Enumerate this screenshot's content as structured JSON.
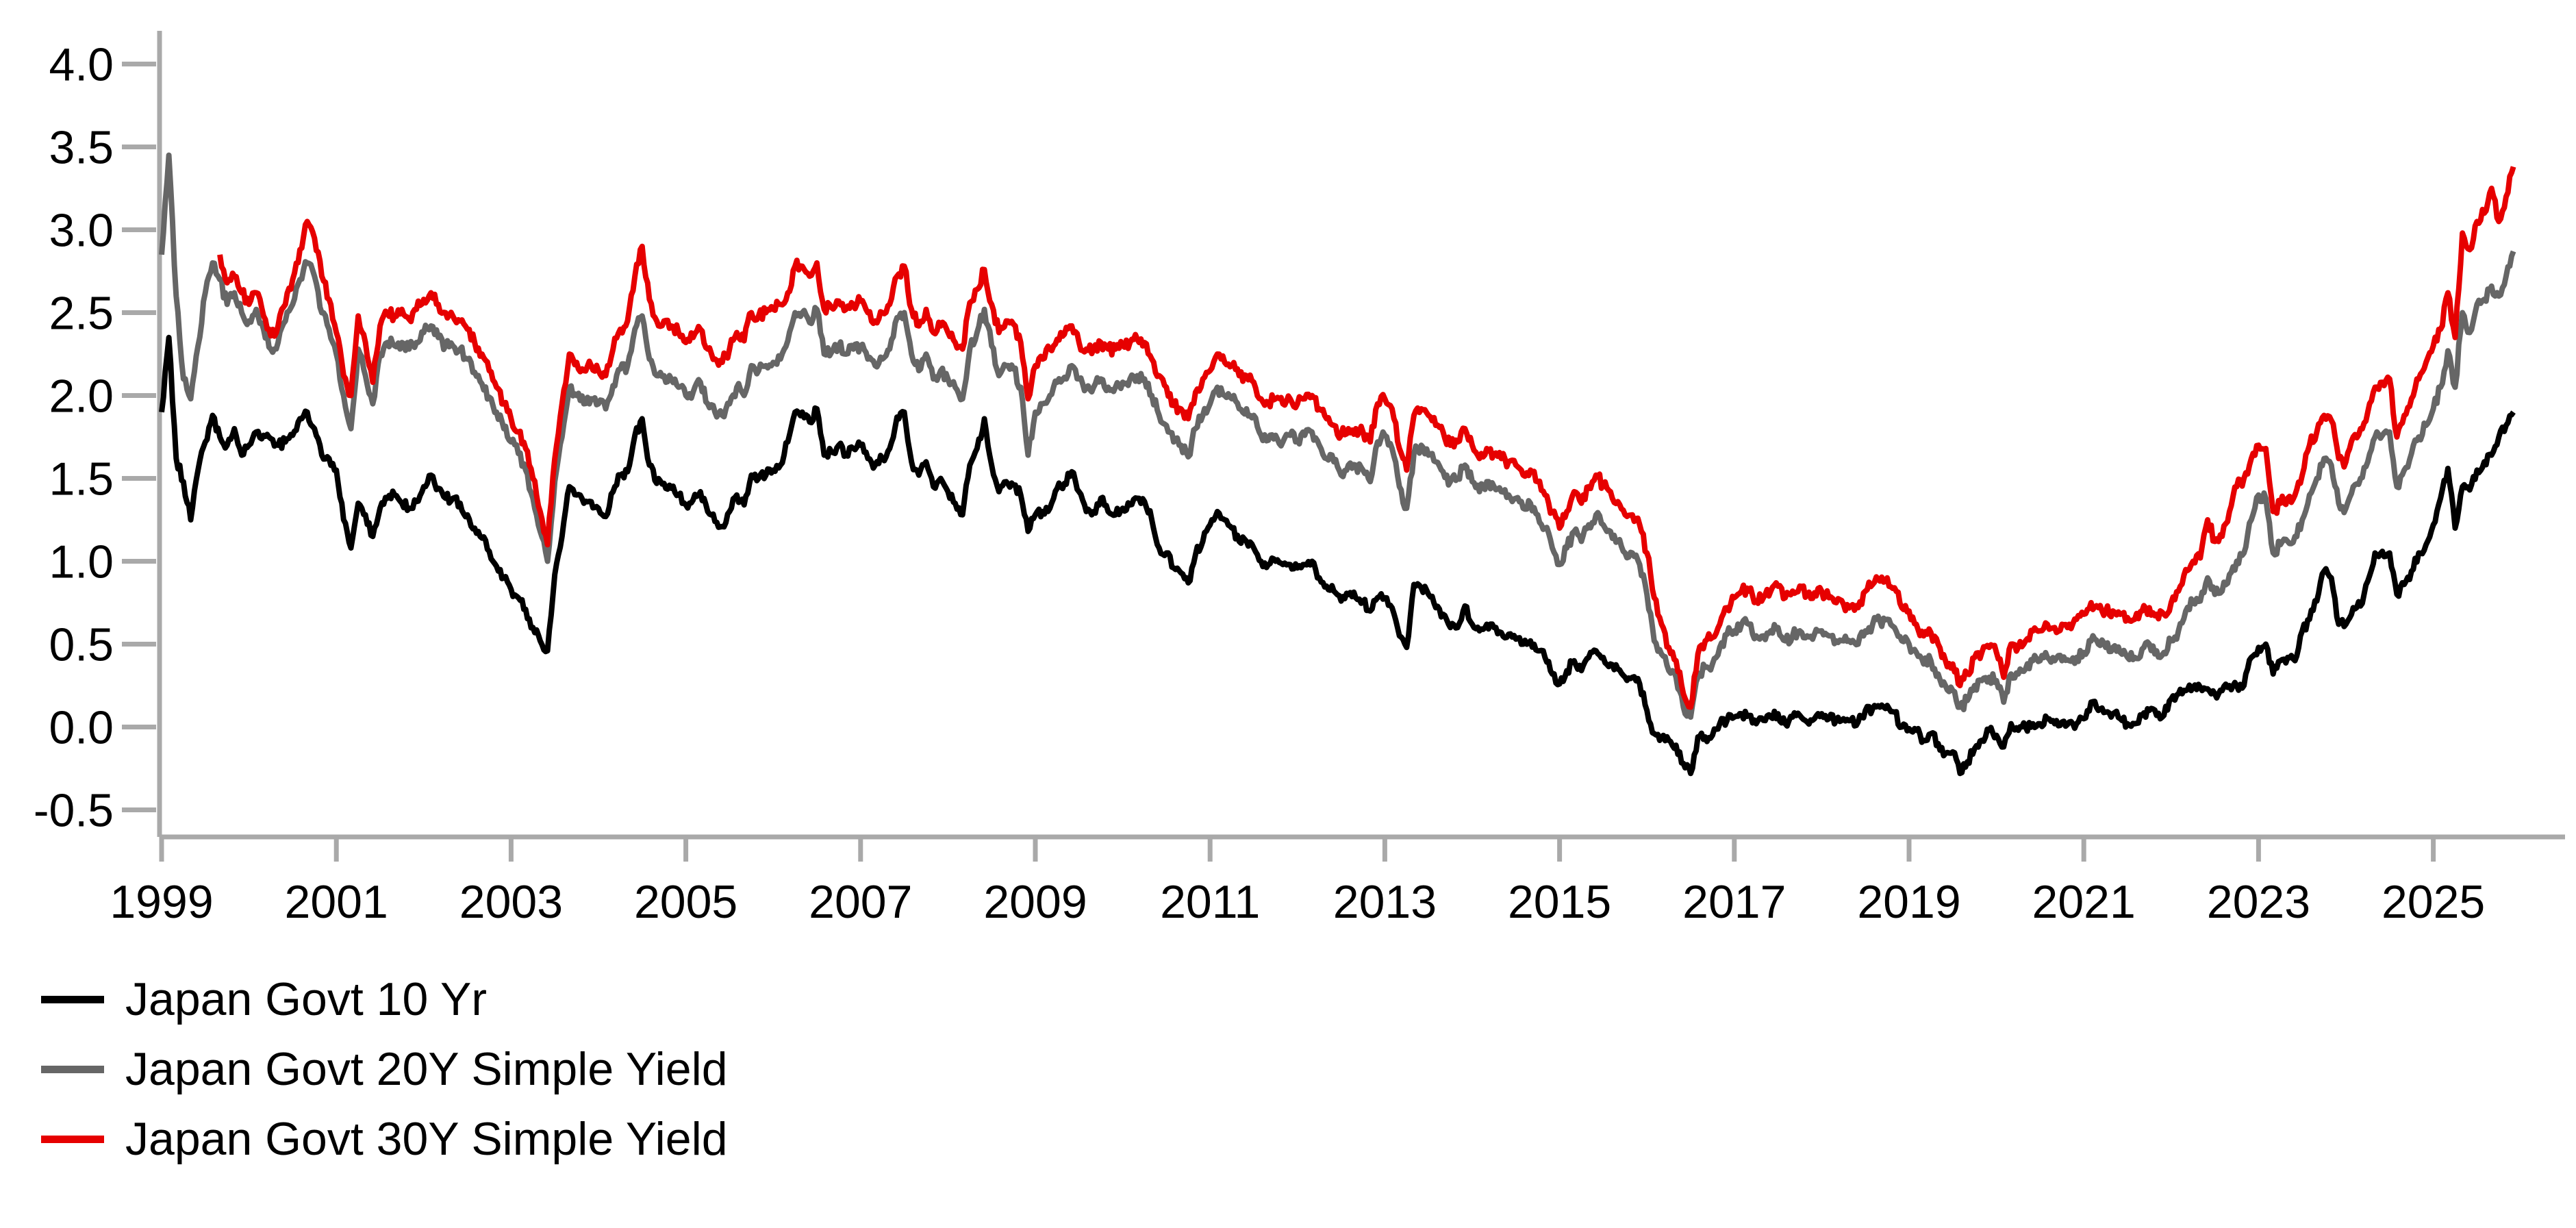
{
  "chart_data": {
    "type": "line",
    "title": "",
    "xlabel": "",
    "ylabel": "",
    "grid": false,
    "legend_position": "bottom-left",
    "axis_color": "#a9a9a9",
    "text_color": "#000000",
    "x_unit": "year",
    "frequency": "monthly",
    "x_ticks": [
      1999,
      2001,
      2003,
      2005,
      2007,
      2009,
      2011,
      2013,
      2015,
      2017,
      2019,
      2021,
      2023,
      2025
    ],
    "x_tick_labels": [
      "1999",
      "2001",
      "2003",
      "2005",
      "2007",
      "2009",
      "2011",
      "2013",
      "2015",
      "2017",
      "2019",
      "2021",
      "2023",
      "2025"
    ],
    "ylim": [
      -0.67,
      4.18
    ],
    "y_ticks": [
      4.0,
      3.5,
      3.0,
      2.5,
      2.0,
      1.5,
      1.0,
      0.5,
      0.0,
      -0.5
    ],
    "y_tick_labels": [
      "4.0",
      "3.5",
      "3.0",
      "2.5",
      "2.0",
      "1.5",
      "1.0",
      "0.5",
      "0.0",
      "-0.5"
    ],
    "x_range": [
      1999.0,
      2026.0
    ],
    "series": [
      {
        "name": "Japan Govt 10 Yr",
        "color": "#000000",
        "start_year": 1999.0,
        "values": [
          1.9,
          2.35,
          1.62,
          1.48,
          1.25,
          1.55,
          1.72,
          1.88,
          1.75,
          1.7,
          1.8,
          1.64,
          1.7,
          1.78,
          1.76,
          1.74,
          1.7,
          1.72,
          1.76,
          1.86,
          1.9,
          1.8,
          1.64,
          1.62,
          1.55,
          1.25,
          1.08,
          1.35,
          1.28,
          1.15,
          1.32,
          1.38,
          1.4,
          1.35,
          1.32,
          1.36,
          1.45,
          1.52,
          1.44,
          1.38,
          1.38,
          1.35,
          1.28,
          1.2,
          1.14,
          1.06,
          0.97,
          0.9,
          0.83,
          0.78,
          0.71,
          0.6,
          0.52,
          0.46,
          0.92,
          1.15,
          1.45,
          1.4,
          1.35,
          1.36,
          1.32,
          1.27,
          1.42,
          1.52,
          1.54,
          1.76,
          1.86,
          1.58,
          1.47,
          1.47,
          1.44,
          1.4,
          1.34,
          1.37,
          1.42,
          1.3,
          1.24,
          1.21,
          1.3,
          1.4,
          1.34,
          1.52,
          1.5,
          1.52,
          1.55,
          1.58,
          1.72,
          1.9,
          1.9,
          1.84,
          1.92,
          1.64,
          1.66,
          1.7,
          1.64,
          1.68,
          1.7,
          1.62,
          1.58,
          1.62,
          1.68,
          1.87,
          1.9,
          1.6,
          1.52,
          1.6,
          1.45,
          1.5,
          1.42,
          1.35,
          1.28,
          1.58,
          1.68,
          1.86,
          1.58,
          1.42,
          1.48,
          1.46,
          1.4,
          1.18,
          1.28,
          1.3,
          1.32,
          1.44,
          1.47,
          1.54,
          1.42,
          1.3,
          1.3,
          1.38,
          1.3,
          1.28,
          1.32,
          1.34,
          1.38,
          1.36,
          1.25,
          1.08,
          1.05,
          0.96,
          0.93,
          0.87,
          1.04,
          1.12,
          1.22,
          1.3,
          1.25,
          1.2,
          1.12,
          1.12,
          1.08,
          1.0,
          0.98,
          1.0,
          0.98,
          0.98,
          0.96,
          0.98,
          1.0,
          0.9,
          0.85,
          0.82,
          0.76,
          0.8,
          0.78,
          0.76,
          0.7,
          0.78,
          0.78,
          0.72,
          0.55,
          0.48,
          0.86,
          0.84,
          0.8,
          0.72,
          0.68,
          0.6,
          0.6,
          0.73,
          0.62,
          0.58,
          0.62,
          0.6,
          0.57,
          0.56,
          0.53,
          0.5,
          0.52,
          0.46,
          0.42,
          0.32,
          0.26,
          0.34,
          0.4,
          0.34,
          0.42,
          0.46,
          0.42,
          0.38,
          0.35,
          0.3,
          0.3,
          0.26,
          0.1,
          -0.04,
          -0.06,
          -0.08,
          -0.11,
          -0.22,
          -0.28,
          -0.06,
          -0.06,
          -0.05,
          0.02,
          0.04,
          0.06,
          0.08,
          0.07,
          0.02,
          0.04,
          0.06,
          0.08,
          0.02,
          0.06,
          0.07,
          0.03,
          0.05,
          0.08,
          0.05,
          0.04,
          0.05,
          0.04,
          0.03,
          0.1,
          0.11,
          0.12,
          0.13,
          0.09,
          0.0,
          -0.01,
          -0.02,
          -0.08,
          -0.04,
          -0.1,
          -0.16,
          -0.15,
          -0.28,
          -0.21,
          -0.13,
          -0.08,
          -0.02,
          -0.05,
          -0.12,
          0.02,
          -0.02,
          0.0,
          0.02,
          0.02,
          0.05,
          0.02,
          0.03,
          0.03,
          0.02,
          0.05,
          0.15,
          0.1,
          0.09,
          0.08,
          0.05,
          0.02,
          0.02,
          0.07,
          0.1,
          0.07,
          0.07,
          0.17,
          0.2,
          0.22,
          0.24,
          0.24,
          0.23,
          0.2,
          0.22,
          0.25,
          0.25,
          0.25,
          0.42,
          0.48,
          0.5,
          0.32,
          0.4,
          0.42,
          0.4,
          0.58,
          0.65,
          0.76,
          0.94,
          0.9,
          0.62,
          0.62,
          0.72,
          0.73,
          0.88,
          1.05,
          1.06,
          1.05,
          0.8,
          0.86,
          0.94,
          1.05,
          1.1,
          1.22,
          1.38,
          1.56,
          1.2,
          1.45,
          1.43,
          1.55,
          1.6,
          1.64,
          1.75,
          1.82,
          1.9
        ]
      },
      {
        "name": "Japan Govt 20Y Simple Yield",
        "color": "#666666",
        "start_year": 1999.0,
        "values": [
          2.85,
          3.45,
          2.6,
          2.1,
          1.98,
          2.3,
          2.62,
          2.8,
          2.7,
          2.55,
          2.62,
          2.5,
          2.45,
          2.52,
          2.4,
          2.28,
          2.32,
          2.45,
          2.55,
          2.7,
          2.8,
          2.72,
          2.5,
          2.4,
          2.25,
          2.0,
          1.8,
          2.28,
          2.12,
          1.95,
          2.25,
          2.32,
          2.3,
          2.32,
          2.28,
          2.32,
          2.38,
          2.42,
          2.35,
          2.3,
          2.3,
          2.28,
          2.22,
          2.14,
          2.07,
          1.99,
          1.9,
          1.8,
          1.72,
          1.65,
          1.55,
          1.38,
          1.18,
          1.0,
          1.48,
          1.75,
          2.05,
          2.0,
          1.95,
          1.98,
          1.95,
          1.92,
          2.06,
          2.16,
          2.18,
          2.4,
          2.48,
          2.22,
          2.12,
          2.12,
          2.1,
          2.05,
          2.0,
          2.02,
          2.08,
          1.95,
          1.9,
          1.88,
          1.95,
          2.05,
          2.0,
          2.18,
          2.15,
          2.18,
          2.2,
          2.22,
          2.33,
          2.5,
          2.5,
          2.44,
          2.52,
          2.25,
          2.26,
          2.3,
          2.25,
          2.28,
          2.3,
          2.22,
          2.18,
          2.22,
          2.28,
          2.47,
          2.5,
          2.25,
          2.15,
          2.25,
          2.1,
          2.15,
          2.1,
          2.05,
          1.98,
          2.28,
          2.38,
          2.52,
          2.3,
          2.12,
          2.18,
          2.16,
          2.05,
          1.64,
          1.9,
          1.95,
          2.0,
          2.08,
          2.11,
          2.18,
          2.1,
          2.05,
          2.05,
          2.1,
          2.05,
          2.05,
          2.08,
          2.1,
          2.12,
          2.1,
          2.0,
          1.88,
          1.82,
          1.72,
          1.7,
          1.63,
          1.8,
          1.88,
          1.95,
          2.05,
          2.0,
          1.98,
          1.92,
          1.92,
          1.88,
          1.76,
          1.73,
          1.76,
          1.72,
          1.76,
          1.73,
          1.76,
          1.78,
          1.7,
          1.62,
          1.6,
          1.52,
          1.58,
          1.58,
          1.55,
          1.48,
          1.72,
          1.76,
          1.68,
          1.45,
          1.32,
          1.65,
          1.7,
          1.64,
          1.6,
          1.54,
          1.48,
          1.5,
          1.58,
          1.48,
          1.42,
          1.48,
          1.45,
          1.42,
          1.4,
          1.38,
          1.32,
          1.35,
          1.28,
          1.2,
          1.08,
          0.98,
          1.08,
          1.18,
          1.12,
          1.22,
          1.28,
          1.22,
          1.18,
          1.12,
          1.05,
          1.05,
          0.98,
          0.8,
          0.52,
          0.44,
          0.34,
          0.3,
          0.12,
          0.06,
          0.3,
          0.36,
          0.38,
          0.48,
          0.56,
          0.58,
          0.62,
          0.62,
          0.55,
          0.55,
          0.58,
          0.6,
          0.52,
          0.55,
          0.58,
          0.55,
          0.56,
          0.58,
          0.55,
          0.52,
          0.52,
          0.51,
          0.5,
          0.58,
          0.62,
          0.64,
          0.65,
          0.6,
          0.52,
          0.5,
          0.45,
          0.38,
          0.4,
          0.32,
          0.25,
          0.22,
          0.12,
          0.16,
          0.25,
          0.28,
          0.3,
          0.28,
          0.15,
          0.32,
          0.32,
          0.35,
          0.4,
          0.4,
          0.42,
          0.4,
          0.4,
          0.4,
          0.42,
          0.45,
          0.52,
          0.5,
          0.48,
          0.48,
          0.45,
          0.42,
          0.42,
          0.47,
          0.5,
          0.46,
          0.45,
          0.52,
          0.58,
          0.7,
          0.75,
          0.76,
          0.9,
          0.8,
          0.82,
          0.92,
          1.0,
          1.05,
          1.25,
          1.4,
          1.38,
          1.05,
          1.1,
          1.12,
          1.15,
          1.25,
          1.4,
          1.5,
          1.62,
          1.58,
          1.35,
          1.32,
          1.45,
          1.5,
          1.6,
          1.75,
          1.76,
          1.78,
          1.45,
          1.55,
          1.65,
          1.75,
          1.82,
          1.92,
          2.05,
          2.27,
          2.05,
          2.5,
          2.38,
          2.55,
          2.58,
          2.66,
          2.6,
          2.72,
          2.87
        ]
      },
      {
        "name": "Japan Govt 30Y Simple Yield",
        "color": "#e60000",
        "start_year": 1999.6667,
        "values": [
          2.85,
          2.68,
          2.72,
          2.62,
          2.55,
          2.62,
          2.48,
          2.36,
          2.42,
          2.55,
          2.7,
          2.88,
          3.05,
          2.95,
          2.72,
          2.58,
          2.38,
          2.12,
          2.0,
          2.48,
          2.32,
          2.08,
          2.42,
          2.5,
          2.48,
          2.52,
          2.46,
          2.52,
          2.58,
          2.62,
          2.55,
          2.5,
          2.48,
          2.45,
          2.4,
          2.32,
          2.25,
          2.15,
          2.05,
          1.95,
          1.86,
          1.78,
          1.68,
          1.5,
          1.3,
          1.1,
          1.62,
          1.95,
          2.25,
          2.2,
          2.15,
          2.18,
          2.15,
          2.12,
          2.28,
          2.4,
          2.45,
          2.72,
          2.9,
          2.58,
          2.45,
          2.45,
          2.42,
          2.38,
          2.32,
          2.35,
          2.4,
          2.28,
          2.22,
          2.2,
          2.28,
          2.38,
          2.33,
          2.5,
          2.48,
          2.5,
          2.52,
          2.55,
          2.62,
          2.78,
          2.78,
          2.72,
          2.8,
          2.52,
          2.53,
          2.57,
          2.52,
          2.55,
          2.57,
          2.5,
          2.45,
          2.5,
          2.55,
          2.72,
          2.78,
          2.52,
          2.42,
          2.52,
          2.38,
          2.42,
          2.38,
          2.32,
          2.28,
          2.56,
          2.64,
          2.76,
          2.55,
          2.38,
          2.45,
          2.43,
          2.32,
          1.98,
          2.18,
          2.22,
          2.28,
          2.34,
          2.37,
          2.42,
          2.32,
          2.28,
          2.28,
          2.32,
          2.28,
          2.28,
          2.3,
          2.32,
          2.34,
          2.32,
          2.22,
          2.12,
          2.05,
          1.94,
          1.92,
          1.86,
          2.02,
          2.1,
          2.15,
          2.25,
          2.2,
          2.18,
          2.12,
          2.12,
          2.08,
          1.98,
          1.96,
          1.98,
          1.95,
          1.98,
          1.95,
          1.98,
          2.0,
          1.92,
          1.86,
          1.82,
          1.76,
          1.8,
          1.8,
          1.78,
          1.72,
          1.95,
          1.98,
          1.92,
          1.68,
          1.55,
          1.88,
          1.92,
          1.88,
          1.82,
          1.78,
          1.7,
          1.72,
          1.8,
          1.7,
          1.62,
          1.68,
          1.65,
          1.62,
          1.6,
          1.58,
          1.52,
          1.55,
          1.48,
          1.4,
          1.3,
          1.2,
          1.3,
          1.42,
          1.35,
          1.45,
          1.52,
          1.46,
          1.42,
          1.36,
          1.28,
          1.28,
          1.22,
          1.05,
          0.78,
          0.62,
          0.48,
          0.4,
          0.2,
          0.12,
          0.44,
          0.52,
          0.54,
          0.62,
          0.72,
          0.78,
          0.82,
          0.82,
          0.76,
          0.78,
          0.82,
          0.85,
          0.78,
          0.82,
          0.85,
          0.8,
          0.81,
          0.82,
          0.78,
          0.75,
          0.74,
          0.73,
          0.72,
          0.82,
          0.86,
          0.88,
          0.9,
          0.84,
          0.72,
          0.7,
          0.62,
          0.55,
          0.57,
          0.5,
          0.4,
          0.38,
          0.25,
          0.32,
          0.42,
          0.45,
          0.48,
          0.45,
          0.3,
          0.5,
          0.48,
          0.52,
          0.58,
          0.58,
          0.62,
          0.6,
          0.62,
          0.62,
          0.65,
          0.68,
          0.75,
          0.72,
          0.7,
          0.7,
          0.68,
          0.66,
          0.65,
          0.7,
          0.72,
          0.68,
          0.68,
          0.75,
          0.82,
          0.95,
          1.0,
          1.02,
          1.25,
          1.12,
          1.15,
          1.3,
          1.45,
          1.5,
          1.62,
          1.7,
          1.68,
          1.3,
          1.35,
          1.38,
          1.4,
          1.52,
          1.7,
          1.78,
          1.88,
          1.85,
          1.62,
          1.6,
          1.75,
          1.8,
          1.9,
          2.05,
          2.08,
          2.1,
          1.75,
          1.88,
          1.98,
          2.1,
          2.2,
          2.3,
          2.4,
          2.62,
          2.35,
          2.98,
          2.88,
          3.05,
          3.1,
          3.25,
          3.05,
          3.2,
          3.38
        ]
      }
    ]
  }
}
